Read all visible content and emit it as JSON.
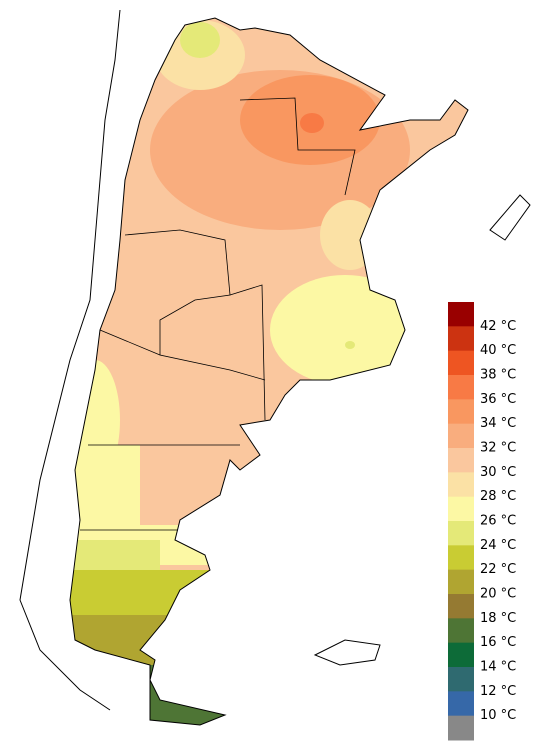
{
  "legend": {
    "labels": [
      "42 °C",
      "40 °C",
      "38 °C",
      "36 °C",
      "34 °C",
      "32 °C",
      "30 °C",
      "28 °C",
      "26 °C",
      "24 °C",
      "22 °C",
      "20 °C",
      "18 °C",
      "16 °C",
      "14 °C",
      "12 °C",
      "10 °C"
    ],
    "colors": [
      "#990000",
      "#cc3311",
      "#ee5522",
      "#f87a45",
      "#f99760",
      "#f9ad7e",
      "#fac79e",
      "#fbe1a5",
      "#fcf8a4",
      "#e4e978",
      "#c9cc33",
      "#b0a531",
      "#957a32",
      "#4e7535",
      "#0d6b38",
      "#2f6a70",
      "#3668a8",
      "#888888"
    ]
  }
}
